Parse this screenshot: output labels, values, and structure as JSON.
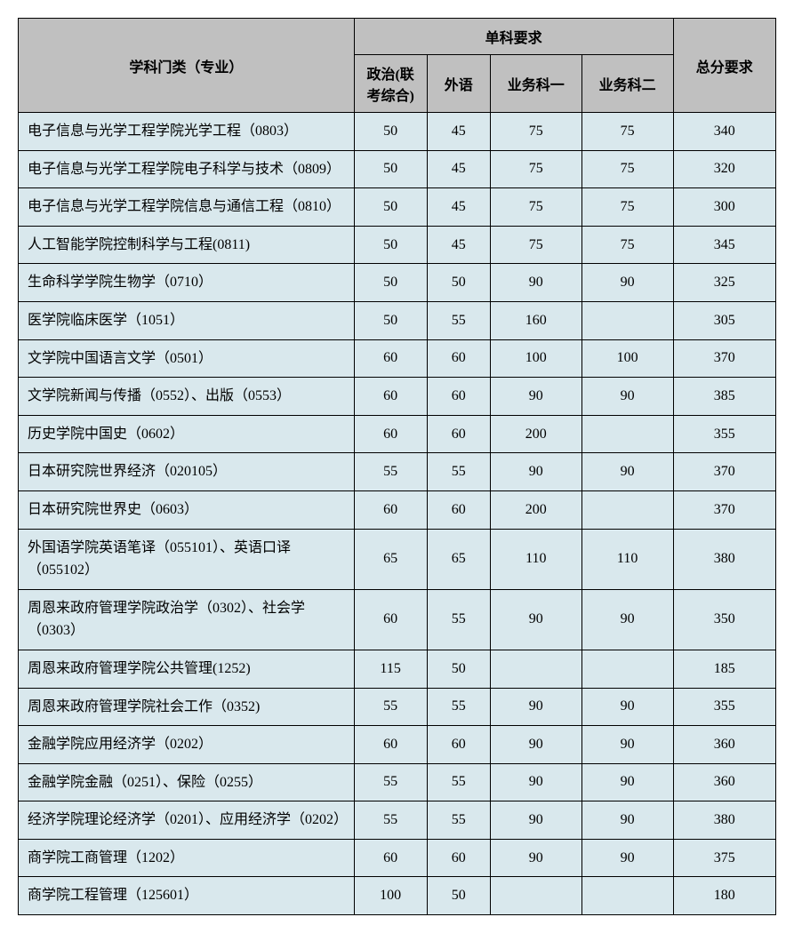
{
  "table": {
    "header": {
      "subject": "学科门类（专业）",
      "subjectReq": "单科要求",
      "sub1": "政治(联考综合)",
      "sub2": "外语",
      "sub3": "业务科一",
      "sub4": "业务科二",
      "total": "总分要求"
    },
    "styling": {
      "headerBg": "#c0c0c0",
      "rowBg": "#d9e8ed",
      "borderColor": "#000000",
      "textColor": "#000000",
      "fontSize": 16,
      "fontFamily": "SimSun",
      "tableWidth": 853,
      "colWidths": {
        "subject": 360,
        "sub1": 78,
        "sub2": 68,
        "sub3": 98,
        "sub4": 98,
        "total": 110
      }
    },
    "rows": [
      {
        "name": "电子信息与光学工程学院光学工程（0803）",
        "s1": "50",
        "s2": "45",
        "s3": "75",
        "s4": "75",
        "total": "340"
      },
      {
        "name": "电子信息与光学工程学院电子科学与技术（0809）",
        "s1": "50",
        "s2": "45",
        "s3": "75",
        "s4": "75",
        "total": "320"
      },
      {
        "name": "电子信息与光学工程学院信息与通信工程（0810）",
        "s1": "50",
        "s2": "45",
        "s3": "75",
        "s4": "75",
        "total": "300"
      },
      {
        "name": "人工智能学院控制科学与工程(0811)",
        "s1": "50",
        "s2": "45",
        "s3": "75",
        "s4": "75",
        "total": "345"
      },
      {
        "name": "生命科学学院生物学（0710）",
        "s1": "50",
        "s2": "50",
        "s3": "90",
        "s4": "90",
        "total": "325"
      },
      {
        "name": "医学院临床医学（1051）",
        "s1": "50",
        "s2": "55",
        "s3": "160",
        "s4": "",
        "total": "305"
      },
      {
        "name": "文学院中国语言文学（0501）",
        "s1": "60",
        "s2": "60",
        "s3": "100",
        "s4": "100",
        "total": "370"
      },
      {
        "name": "文学院新闻与传播（0552）、出版（0553）",
        "s1": "60",
        "s2": "60",
        "s3": "90",
        "s4": "90",
        "total": "385"
      },
      {
        "name": "历史学院中国史（0602）",
        "s1": "60",
        "s2": "60",
        "s3": "200",
        "s4": "",
        "total": "355"
      },
      {
        "name": "日本研究院世界经济（020105）",
        "s1": "55",
        "s2": "55",
        "s3": "90",
        "s4": "90",
        "total": "370"
      },
      {
        "name": "日本研究院世界史（0603）",
        "s1": "60",
        "s2": "60",
        "s3": "200",
        "s4": "",
        "total": "370"
      },
      {
        "name": "外国语学院英语笔译（055101）、英语口译（055102）",
        "s1": "65",
        "s2": "65",
        "s3": "110",
        "s4": "110",
        "total": "380"
      },
      {
        "name": "周恩来政府管理学院政治学（0302）、社会学（0303）",
        "s1": "60",
        "s2": "55",
        "s3": "90",
        "s4": "90",
        "total": "350"
      },
      {
        "name": "周恩来政府管理学院公共管理(1252)",
        "s1": "115",
        "s2": "50",
        "s3": "",
        "s4": "",
        "total": "185"
      },
      {
        "name": "周恩来政府管理学院社会工作（0352)",
        "s1": "55",
        "s2": "55",
        "s3": "90",
        "s4": "90",
        "total": "355"
      },
      {
        "name": "金融学院应用经济学（0202）",
        "s1": "60",
        "s2": "60",
        "s3": "90",
        "s4": "90",
        "total": "360"
      },
      {
        "name": "金融学院金融（0251）、保险（0255）",
        "s1": "55",
        "s2": "55",
        "s3": "90",
        "s4": "90",
        "total": "360"
      },
      {
        "name": "经济学院理论经济学（0201）、应用经济学（0202）",
        "s1": "55",
        "s2": "55",
        "s3": "90",
        "s4": "90",
        "total": "380"
      },
      {
        "name": "商学院工商管理（1202）",
        "s1": "60",
        "s2": "60",
        "s3": "90",
        "s4": "90",
        "total": "375"
      },
      {
        "name": "商学院工程管理（125601）",
        "s1": "100",
        "s2": "50",
        "s3": "",
        "s4": "",
        "total": "180"
      }
    ]
  }
}
